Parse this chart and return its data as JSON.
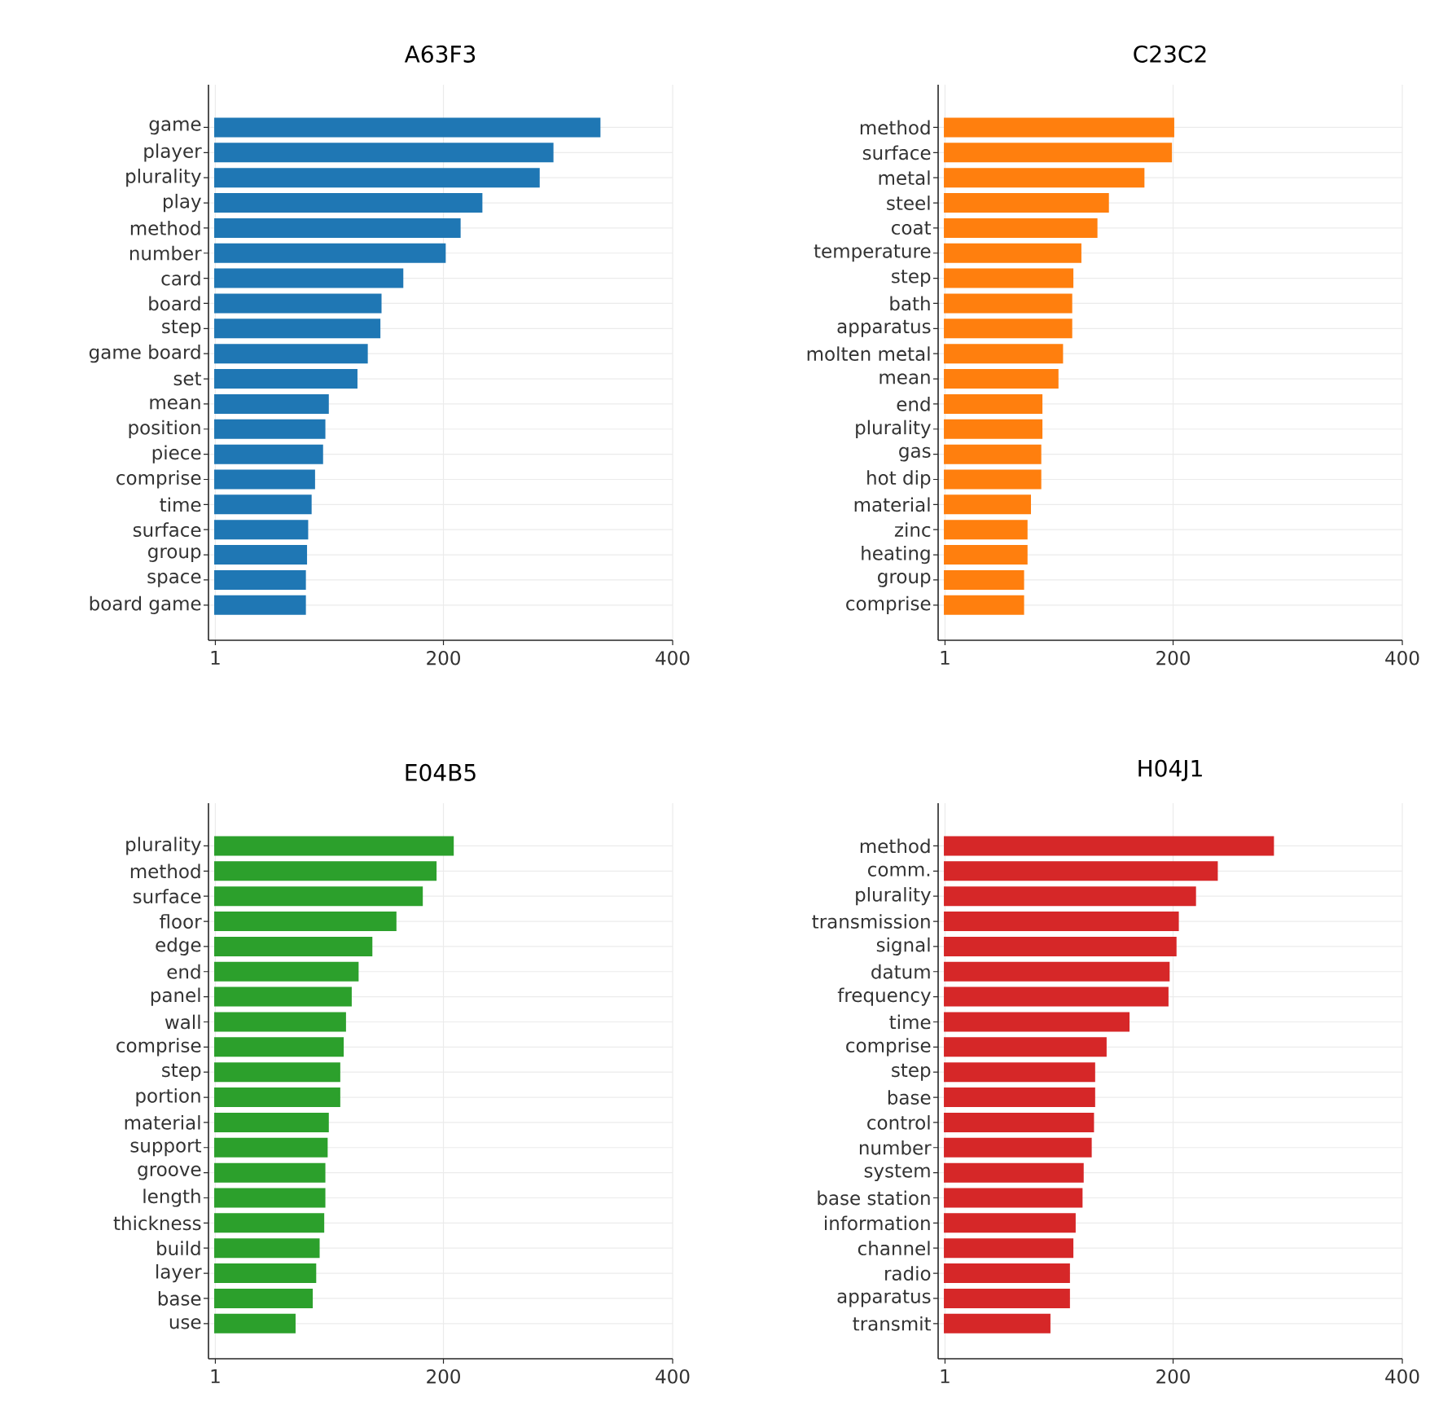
{
  "chart_data": [
    {
      "type": "bar",
      "orientation": "horizontal",
      "title": "A63F3",
      "color": "#1f77b4",
      "grid": true,
      "xlim": [
        -5,
        400
      ],
      "xticks": [
        1,
        200,
        400
      ],
      "categories": [
        "game",
        "player",
        "plurality",
        "play",
        "method",
        "number",
        "card",
        "board",
        "step",
        "game board",
        "set",
        "mean",
        "position",
        "piece",
        "comprise",
        "time",
        "surface",
        "group",
        "space",
        "board game"
      ],
      "values": [
        337,
        296,
        284,
        234,
        215,
        202,
        165,
        146,
        145,
        134,
        125,
        100,
        97,
        95,
        88,
        85,
        82,
        81,
        80,
        80
      ]
    },
    {
      "type": "bar",
      "orientation": "horizontal",
      "title": "C23C2",
      "color": "#ff7f0e",
      "grid": true,
      "xlim": [
        -5,
        400
      ],
      "xticks": [
        1,
        200,
        400
      ],
      "categories": [
        "method",
        "surface",
        "metal",
        "steel",
        "coat",
        "temperature",
        "step",
        "bath",
        "apparatus",
        "molten metal",
        "mean",
        "end",
        "plurality",
        "gas",
        "hot dip",
        "material",
        "zinc",
        "heating",
        "group",
        "comprise"
      ],
      "values": [
        201,
        199,
        175,
        144,
        134,
        120,
        113,
        112,
        112,
        104,
        100,
        86,
        86,
        85,
        85,
        76,
        73,
        73,
        70,
        70
      ]
    },
    {
      "type": "bar",
      "orientation": "horizontal",
      "title": "E04B5",
      "color": "#2ca02c",
      "grid": true,
      "xlim": [
        -5,
        400
      ],
      "xticks": [
        1,
        200,
        400
      ],
      "categories": [
        "plurality",
        "method",
        "surface",
        "floor",
        "edge",
        "end",
        "panel",
        "wall",
        "comprise",
        "step",
        "portion",
        "material",
        "support",
        "groove",
        "length",
        "thickness",
        "build",
        "layer",
        "base",
        "use"
      ],
      "values": [
        209,
        194,
        182,
        159,
        138,
        126,
        120,
        115,
        113,
        110,
        110,
        100,
        99,
        97,
        97,
        96,
        92,
        89,
        86,
        71
      ]
    },
    {
      "type": "bar",
      "orientation": "horizontal",
      "title": "H04J1",
      "color": "#d62728",
      "grid": true,
      "xlim": [
        -5,
        400
      ],
      "xticks": [
        1,
        200,
        400
      ],
      "categories": [
        "method",
        "comm.",
        "plurality",
        "transmission",
        "signal",
        "datum",
        "frequency",
        "time",
        "comprise",
        "step",
        "base",
        "control",
        "number",
        "system",
        "base station",
        "information",
        "channel",
        "radio",
        "apparatus",
        "transmit"
      ],
      "values": [
        288,
        239,
        220,
        205,
        203,
        197,
        196,
        162,
        142,
        132,
        132,
        131,
        129,
        122,
        121,
        115,
        113,
        110,
        110,
        93
      ]
    }
  ]
}
